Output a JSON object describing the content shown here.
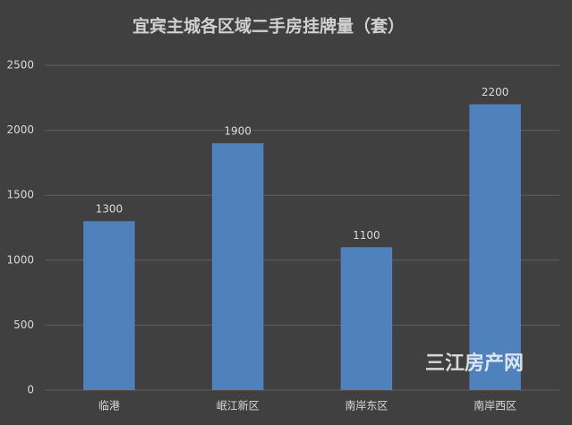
{
  "chart_data": {
    "type": "bar",
    "title": "宜宾主城各区域二手房挂牌量（套）",
    "categories": [
      "临港",
      "岷江新区",
      "南岸东区",
      "南岸西区"
    ],
    "values": [
      1300,
      1900,
      1100,
      2200
    ],
    "color": "#4f81bd",
    "ylim": [
      0,
      2500
    ],
    "yticks": [
      0,
      500,
      1000,
      1500,
      2000,
      2500
    ],
    "grid": true,
    "watermark": "三江房产网"
  }
}
